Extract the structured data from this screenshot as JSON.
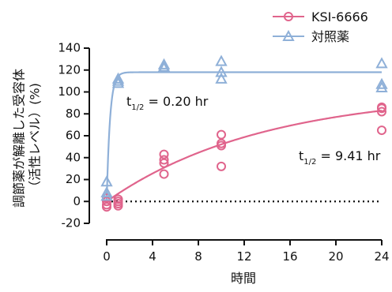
{
  "chart_data": {
    "type": "scatter",
    "xlabel": "時間",
    "ylabel_line1": "調節薬が解離した受容体",
    "ylabel_line2": "（活性レベル）(%)",
    "xlim": [
      0,
      24
    ],
    "ylim": [
      -20,
      140
    ],
    "x_ticks": [
      0,
      4,
      8,
      12,
      16,
      20,
      24
    ],
    "y_ticks": [
      -20,
      0,
      20,
      40,
      60,
      80,
      100,
      120,
      140
    ],
    "x_tick_labels": [
      "0",
      "4",
      "8",
      "12",
      "16",
      "20",
      "24"
    ],
    "y_tick_labels": [
      "-20",
      "0",
      "20",
      "40",
      "60",
      "80",
      "100",
      "120",
      "140"
    ],
    "baseline": {
      "y": 0,
      "style": "dotted"
    },
    "legend_position": "top-right",
    "series": [
      {
        "name": "KSI-6666",
        "marker": "circle",
        "color": "#e0648c",
        "points": [
          [
            0,
            3
          ],
          [
            0,
            -3
          ],
          [
            0,
            -5
          ],
          [
            0,
            0
          ],
          [
            1,
            2
          ],
          [
            1,
            -2
          ],
          [
            1,
            -4
          ],
          [
            1,
            0
          ],
          [
            5,
            25
          ],
          [
            5,
            35
          ],
          [
            5,
            38
          ],
          [
            5,
            43
          ],
          [
            10,
            32
          ],
          [
            10,
            51
          ],
          [
            10,
            53
          ],
          [
            10,
            61
          ],
          [
            24,
            65
          ],
          [
            24,
            82
          ],
          [
            24,
            85
          ],
          [
            24,
            86
          ]
        ],
        "fit": {
          "model": "one-phase association",
          "plateau": 100,
          "half_life_hr": 9.41
        },
        "annotation": {
          "main": "t",
          "sub": "1/2",
          "rest": " = 9.41 hr"
        }
      },
      {
        "name": "対照薬",
        "marker": "triangle",
        "color": "#8fb0d8",
        "points": [
          [
            0,
            18
          ],
          [
            0,
            8
          ],
          [
            0,
            5
          ],
          [
            1,
            112
          ],
          [
            1,
            108
          ],
          [
            1,
            110
          ],
          [
            5,
            125
          ],
          [
            5,
            123
          ],
          [
            5,
            122
          ],
          [
            10,
            128
          ],
          [
            10,
            118
          ],
          [
            10,
            112
          ],
          [
            24,
            126
          ],
          [
            24,
            107
          ],
          [
            24,
            104
          ]
        ],
        "fit": {
          "model": "one-phase association",
          "plateau": 118,
          "half_life_hr": 0.2
        },
        "annotation": {
          "main": "t",
          "sub": "1/2",
          "rest": " = 0.20 hr"
        }
      }
    ]
  }
}
